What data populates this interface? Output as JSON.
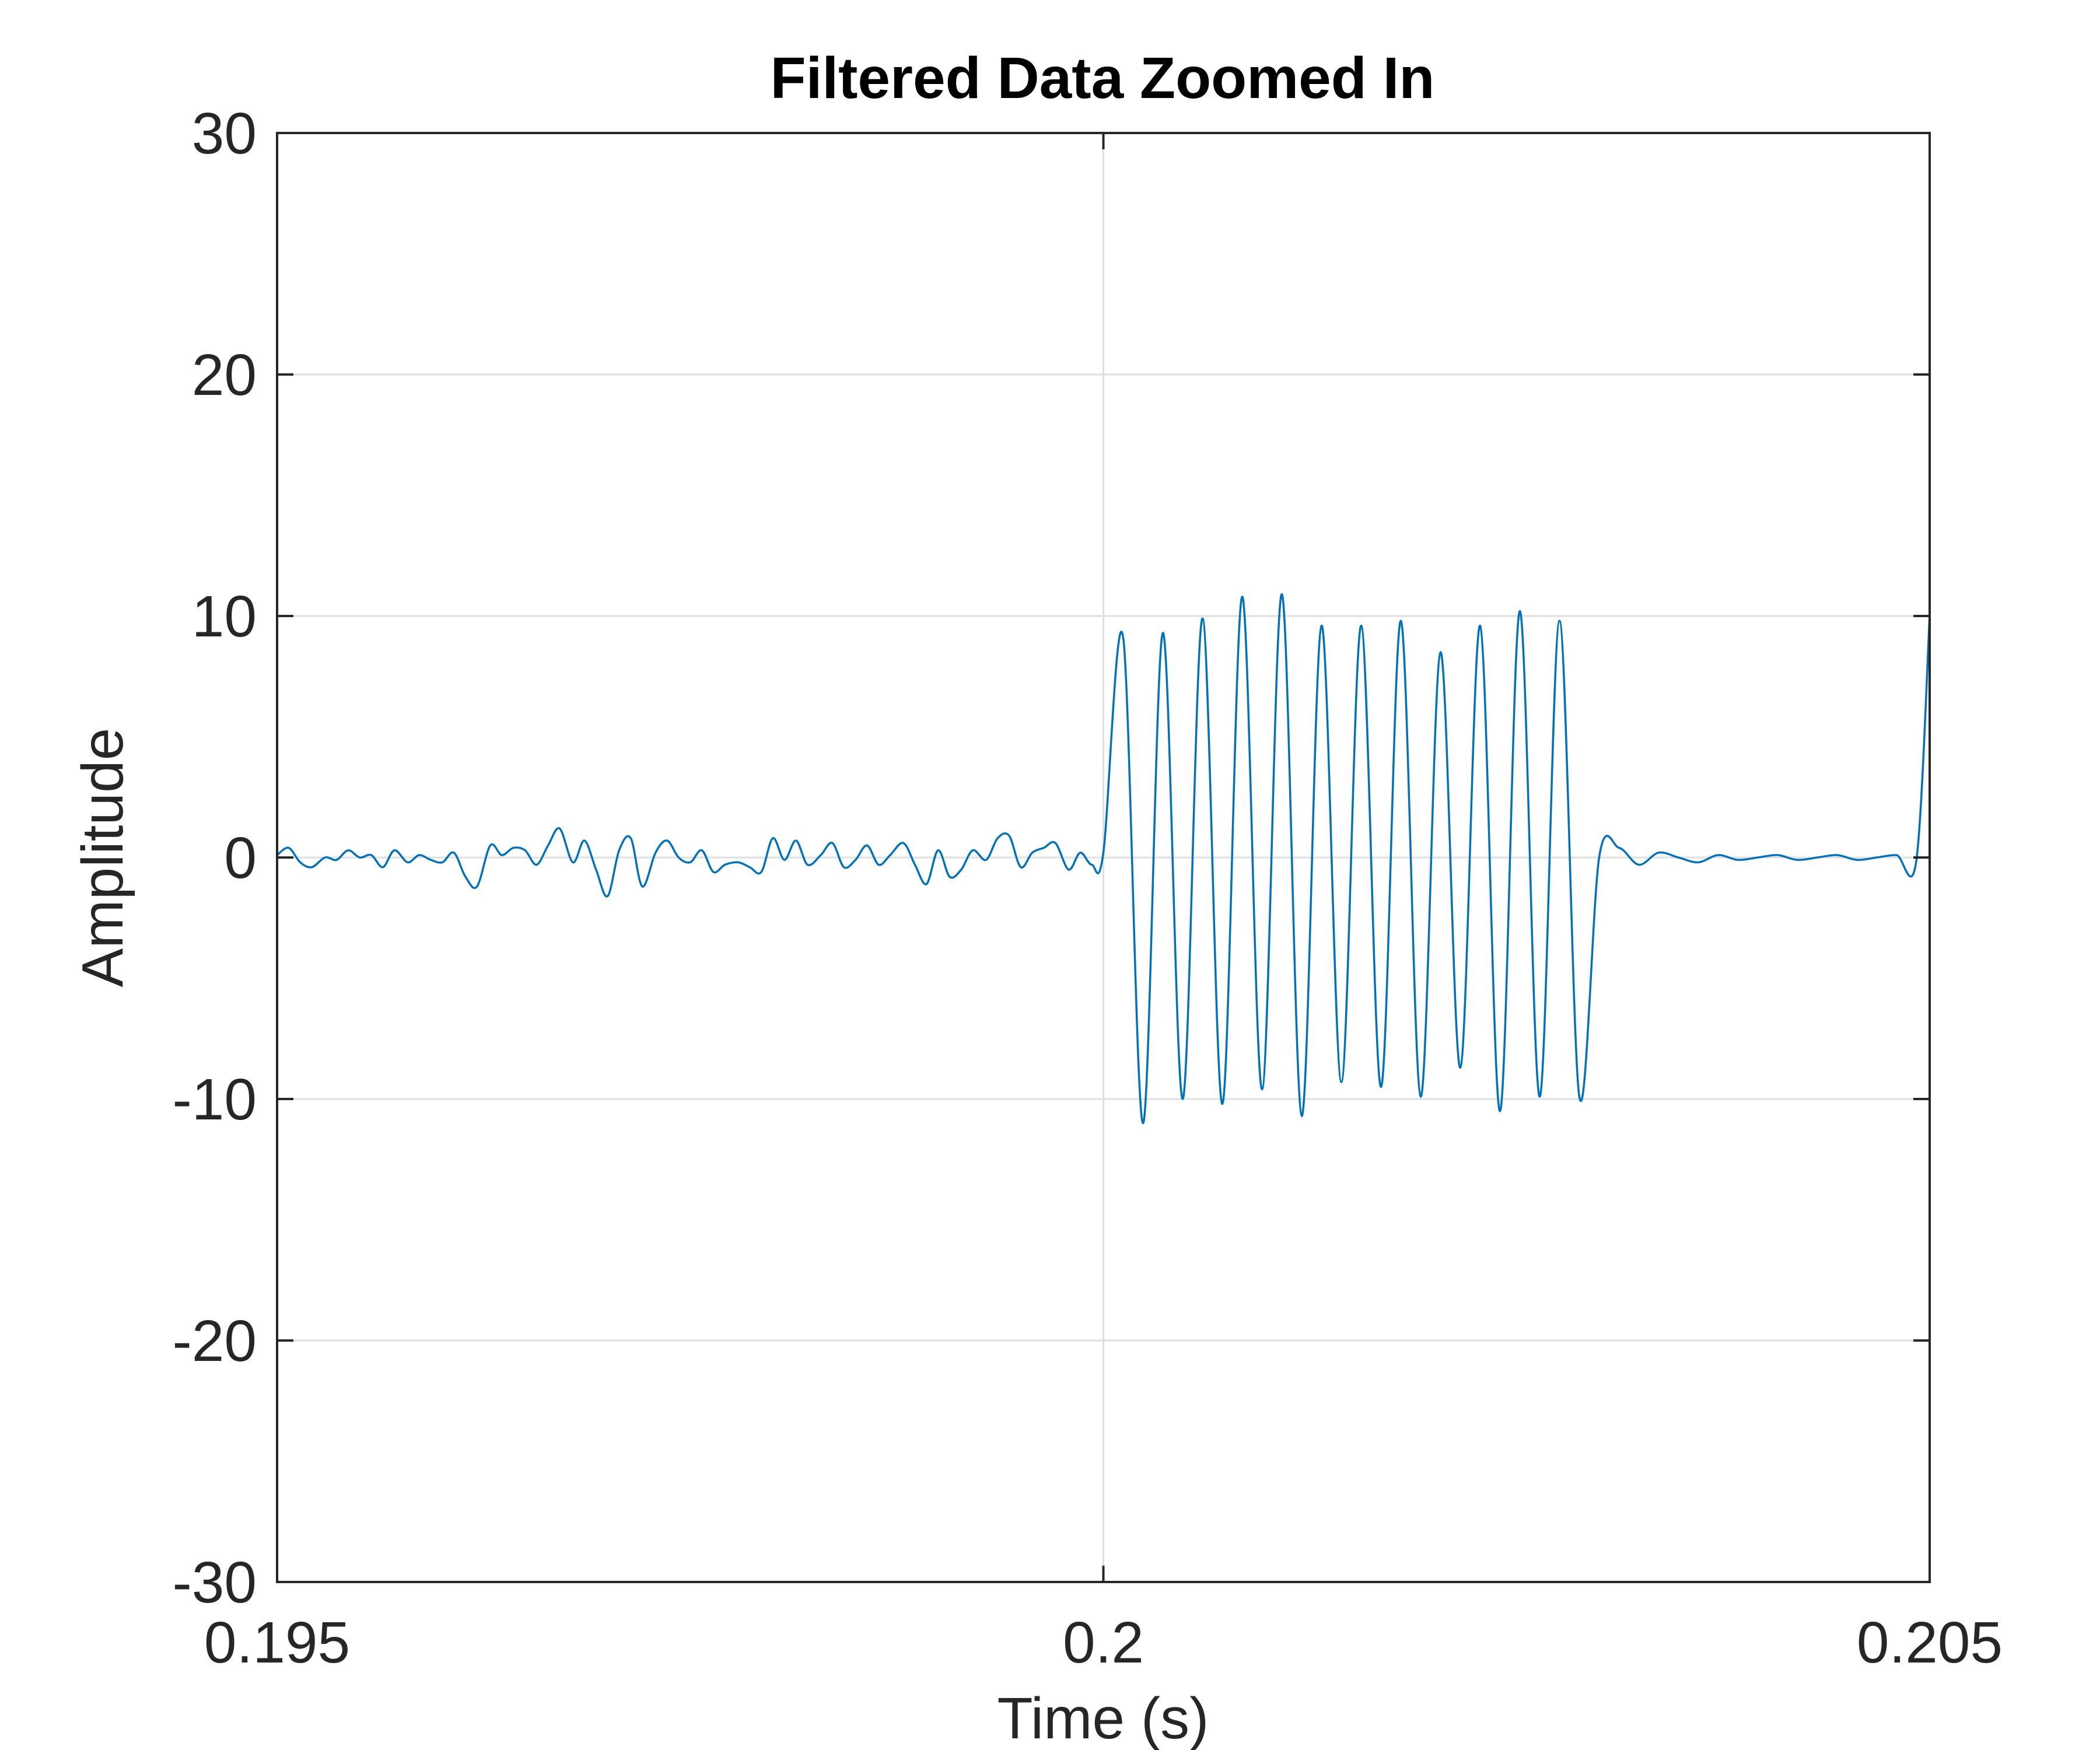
{
  "chart_data": {
    "type": "line",
    "title": "Filtered Data Zoomed In",
    "xlabel": "Time (s)",
    "ylabel": "Amplitude",
    "xlim": [
      0.195,
      0.205
    ],
    "ylim": [
      -30,
      30
    ],
    "xticks": [
      0.195,
      0.2,
      0.205
    ],
    "xtick_labels": [
      "0.195",
      "0.2",
      "0.205"
    ],
    "yticks": [
      -30,
      -20,
      -10,
      0,
      10,
      20,
      30
    ],
    "ytick_labels": [
      "-30",
      "-20",
      "-10",
      "0",
      "10",
      "20",
      "30"
    ],
    "grid": true,
    "line_color": "#0072BD",
    "series": [
      {
        "x": [
          0.195,
          0.19507,
          0.19514,
          0.19521,
          0.19529,
          0.19536,
          0.19543,
          0.1955,
          0.19557,
          0.19564,
          0.19571,
          0.19579,
          0.19586,
          0.19593,
          0.196,
          0.19607,
          0.19614,
          0.19621,
          0.19629,
          0.19636,
          0.19643,
          0.1965,
          0.19657,
          0.19664,
          0.19671,
          0.19679,
          0.19686,
          0.19693,
          0.197,
          0.19707,
          0.19714,
          0.19721,
          0.19729,
          0.19736,
          0.19743,
          0.1975,
          0.19757,
          0.19764,
          0.19771,
          0.19779,
          0.19786,
          0.19793,
          0.198,
          0.19807,
          0.19814,
          0.19821,
          0.19829,
          0.19836,
          0.19843,
          0.1985,
          0.19857,
          0.19864,
          0.19871,
          0.19879,
          0.19886,
          0.19893,
          0.199,
          0.19907,
          0.19914,
          0.19921,
          0.19929,
          0.19936,
          0.19943,
          0.1995,
          0.19957,
          0.19964,
          0.19971,
          0.19979,
          0.19986,
          0.19993,
          0.2,
          0.20012,
          0.20024,
          0.20036,
          0.20048,
          0.2006,
          0.20072,
          0.20084,
          0.20096,
          0.20108,
          0.2012,
          0.20132,
          0.20144,
          0.20156,
          0.20168,
          0.2018,
          0.20192,
          0.20204,
          0.20216,
          0.20228,
          0.2024,
          0.20252,
          0.20264,
          0.20276,
          0.20288,
          0.203,
          0.20312,
          0.20324,
          0.20336,
          0.20348,
          0.2036,
          0.20372,
          0.20384,
          0.20396,
          0.20408,
          0.2042,
          0.20432,
          0.20444,
          0.20456,
          0.20468,
          0.2048,
          0.20492,
          0.205
        ],
        "y": [
          0.1,
          0.4,
          -0.2,
          -0.4,
          0.0,
          -0.1,
          0.3,
          0.0,
          0.1,
          -0.4,
          0.3,
          -0.2,
          0.1,
          -0.1,
          -0.2,
          0.2,
          -0.8,
          -1.2,
          0.5,
          0.1,
          0.4,
          0.3,
          -0.3,
          0.5,
          1.2,
          -0.2,
          0.7,
          -0.5,
          -1.6,
          0.3,
          0.8,
          -1.2,
          0.2,
          0.7,
          0.0,
          -0.2,
          0.3,
          -0.6,
          -0.3,
          -0.2,
          -0.4,
          -0.6,
          0.8,
          -0.1,
          0.7,
          -0.3,
          0.1,
          0.6,
          -0.4,
          -0.1,
          0.5,
          -0.3,
          0.1,
          0.6,
          -0.3,
          -1.1,
          0.3,
          -0.8,
          -0.5,
          0.3,
          -0.1,
          0.8,
          0.9,
          -0.4,
          0.2,
          0.4,
          0.6,
          -0.5,
          0.2,
          -0.3,
          0.2,
          9.1,
          -11.0,
          9.3,
          -10.0,
          9.9,
          -10.2,
          10.8,
          -9.6,
          10.9,
          -10.7,
          9.6,
          -9.3,
          9.6,
          -9.5,
          9.8,
          -9.9,
          8.5,
          -8.7,
          9.6,
          -10.5,
          10.2,
          -9.9,
          9.8,
          -9.9,
          0.0,
          0.4,
          -0.3,
          0.2,
          0.0,
          -0.2,
          0.1,
          -0.1,
          0.0,
          0.1,
          -0.1,
          0.0,
          0.1,
          -0.1,
          0.0,
          0.1,
          -0.1,
          10.0
        ]
      }
    ]
  }
}
